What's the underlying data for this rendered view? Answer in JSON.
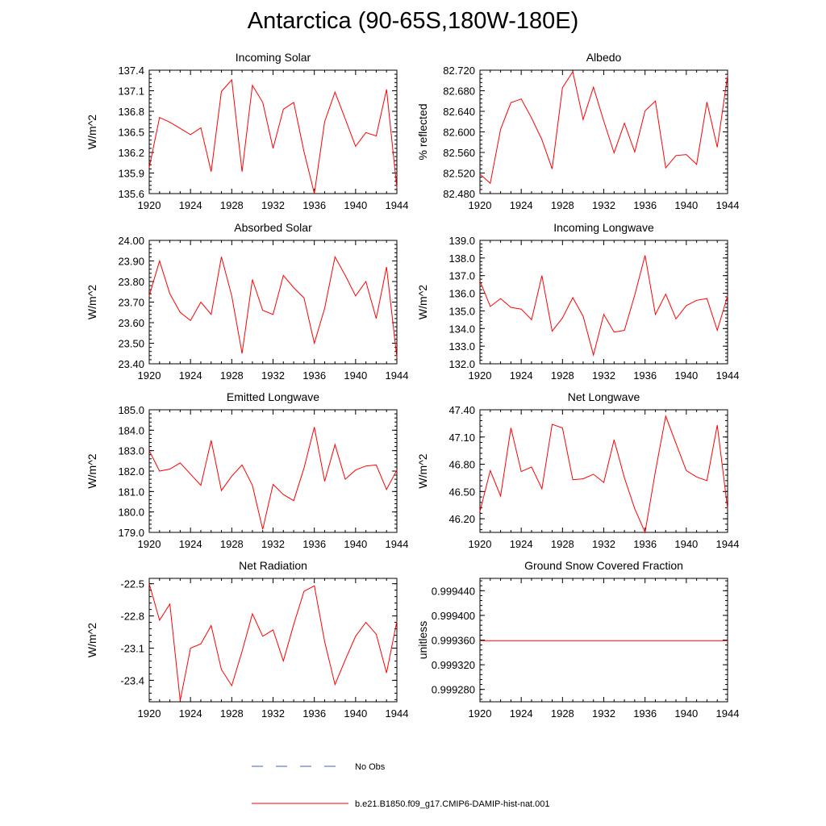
{
  "title": "Antarctica (90-65S,180W-180E)",
  "colors": {
    "model_line": "#ff0000",
    "obs_line": "#3f5fbf",
    "frame": "#000000"
  },
  "legend": {
    "obs_label": "No Obs",
    "model_label": "b.e21.B1850.f09_g17.CMIP6-DAMIP-hist-nat.001"
  },
  "chart_data": [
    {
      "type": "line",
      "title": "Incoming Solar",
      "xlabel": "",
      "ylabel": "W/m^2",
      "xlim": [
        1920,
        1944
      ],
      "ylim": [
        135.6,
        137.4
      ],
      "xticks": [
        1920,
        1924,
        1928,
        1932,
        1936,
        1940,
        1944
      ],
      "yticks": [
        135.6,
        135.9,
        136.2,
        136.5,
        136.8,
        137.1,
        137.4
      ],
      "ytick_labels": [
        "135.6",
        "135.9",
        "136.2",
        "136.5",
        "136.8",
        "137.1",
        "137.4"
      ],
      "x": [
        1920,
        1921,
        1922,
        1923,
        1924,
        1925,
        1926,
        1927,
        1928,
        1929,
        1930,
        1931,
        1932,
        1933,
        1934,
        1935,
        1936,
        1937,
        1938,
        1939,
        1940,
        1941,
        1942,
        1943,
        1944
      ],
      "series": [
        {
          "values": [
            135.98,
            136.71,
            136.64,
            136.55,
            136.46,
            136.56,
            135.92,
            137.09,
            137.26,
            135.92,
            137.18,
            136.93,
            136.26,
            136.83,
            136.93,
            136.21,
            135.6,
            136.65,
            137.08,
            136.69,
            136.29,
            136.49,
            136.44,
            137.12,
            135.68
          ]
        }
      ]
    },
    {
      "type": "line",
      "title": "Albedo",
      "xlabel": "",
      "ylabel": "% reflected",
      "xlim": [
        1920,
        1944
      ],
      "ylim": [
        82.48,
        82.72
      ],
      "xticks": [
        1920,
        1924,
        1928,
        1932,
        1936,
        1940,
        1944
      ],
      "yticks": [
        82.48,
        82.52,
        82.56,
        82.6,
        82.64,
        82.68,
        82.72
      ],
      "ytick_labels": [
        "82.480",
        "82.520",
        "82.560",
        "82.600",
        "82.640",
        "82.680",
        "82.720"
      ],
      "x": [
        1920,
        1921,
        1922,
        1923,
        1924,
        1925,
        1926,
        1927,
        1928,
        1929,
        1930,
        1931,
        1932,
        1933,
        1934,
        1935,
        1936,
        1937,
        1938,
        1939,
        1940,
        1941,
        1942,
        1943,
        1944
      ],
      "series": [
        {
          "values": [
            82.518,
            82.5,
            82.605,
            82.657,
            82.664,
            82.627,
            82.585,
            82.528,
            82.686,
            82.717,
            82.624,
            82.687,
            82.621,
            82.559,
            82.617,
            82.561,
            82.641,
            82.66,
            82.53,
            82.554,
            82.556,
            82.537,
            82.658,
            82.57,
            82.71
          ]
        }
      ]
    },
    {
      "type": "line",
      "title": "Absorbed Solar",
      "xlabel": "",
      "ylabel": "W/m^2",
      "xlim": [
        1920,
        1944
      ],
      "ylim": [
        23.4,
        24.0
      ],
      "xticks": [
        1920,
        1924,
        1928,
        1932,
        1936,
        1940,
        1944
      ],
      "yticks": [
        23.4,
        23.5,
        23.6,
        23.7,
        23.8,
        23.9,
        24.0
      ],
      "ytick_labels": [
        "23.40",
        "23.50",
        "23.60",
        "23.70",
        "23.80",
        "23.90",
        "24.00"
      ],
      "x": [
        1920,
        1921,
        1922,
        1923,
        1924,
        1925,
        1926,
        1927,
        1928,
        1929,
        1930,
        1931,
        1932,
        1933,
        1934,
        1935,
        1936,
        1937,
        1938,
        1939,
        1940,
        1941,
        1942,
        1943,
        1944
      ],
      "series": [
        {
          "values": [
            23.73,
            23.9,
            23.74,
            23.65,
            23.61,
            23.7,
            23.64,
            23.92,
            23.73,
            23.45,
            23.81,
            23.66,
            23.64,
            23.83,
            23.77,
            23.72,
            23.5,
            23.67,
            23.92,
            23.83,
            23.73,
            23.8,
            23.62,
            23.87,
            23.43
          ]
        }
      ]
    },
    {
      "type": "line",
      "title": "Incoming Longwave",
      "xlabel": "",
      "ylabel": "W/m^2",
      "xlim": [
        1920,
        1944
      ],
      "ylim": [
        132.0,
        139.0
      ],
      "xticks": [
        1920,
        1924,
        1928,
        1932,
        1936,
        1940,
        1944
      ],
      "yticks": [
        132,
        133,
        134,
        135,
        136,
        137,
        138,
        139
      ],
      "ytick_labels": [
        "132.0",
        "133.0",
        "134.0",
        "135.0",
        "136.0",
        "137.0",
        "138.0",
        "139.0"
      ],
      "x": [
        1920,
        1921,
        1922,
        1923,
        1924,
        1925,
        1926,
        1927,
        1928,
        1929,
        1930,
        1931,
        1932,
        1933,
        1934,
        1935,
        1936,
        1937,
        1938,
        1939,
        1940,
        1941,
        1942,
        1943,
        1944
      ],
      "series": [
        {
          "values": [
            136.7,
            135.25,
            135.7,
            135.2,
            135.1,
            134.5,
            137.0,
            133.85,
            134.6,
            135.75,
            134.7,
            132.5,
            134.8,
            133.8,
            133.9,
            135.9,
            138.15,
            134.8,
            135.95,
            134.55,
            135.3,
            135.6,
            135.7,
            133.9,
            135.85
          ]
        }
      ]
    },
    {
      "type": "line",
      "title": "Emitted Longwave",
      "xlabel": "",
      "ylabel": "W/m^2",
      "xlim": [
        1920,
        1944
      ],
      "ylim": [
        179.0,
        185.0
      ],
      "xticks": [
        1920,
        1924,
        1928,
        1932,
        1936,
        1940,
        1944
      ],
      "yticks": [
        179,
        180,
        181,
        182,
        183,
        184,
        185
      ],
      "ytick_labels": [
        "179.0",
        "180.0",
        "181.0",
        "182.0",
        "183.0",
        "184.0",
        "185.0"
      ],
      "x": [
        1920,
        1921,
        1922,
        1923,
        1924,
        1925,
        1926,
        1927,
        1928,
        1929,
        1930,
        1931,
        1932,
        1933,
        1934,
        1935,
        1936,
        1937,
        1938,
        1939,
        1940,
        1941,
        1942,
        1943,
        1944
      ],
      "series": [
        {
          "values": [
            183.0,
            182.0,
            182.1,
            182.4,
            181.85,
            181.3,
            183.5,
            181.05,
            181.75,
            182.3,
            181.3,
            179.15,
            181.35,
            180.85,
            180.55,
            182.15,
            184.15,
            181.5,
            183.3,
            181.6,
            182.05,
            182.25,
            182.3,
            181.1,
            182.05
          ]
        }
      ]
    },
    {
      "type": "line",
      "title": "Net Longwave",
      "xlabel": "",
      "ylabel": "W/m^2",
      "xlim": [
        1920,
        1944
      ],
      "ylim": [
        46.05,
        47.4
      ],
      "xticks": [
        1920,
        1924,
        1928,
        1932,
        1936,
        1940,
        1944
      ],
      "yticks": [
        46.2,
        46.5,
        46.8,
        47.1,
        47.4
      ],
      "ytick_labels": [
        "46.20",
        "46.50",
        "46.80",
        "47.10",
        "47.40"
      ],
      "x": [
        1920,
        1921,
        1922,
        1923,
        1924,
        1925,
        1926,
        1927,
        1928,
        1929,
        1930,
        1931,
        1932,
        1933,
        1934,
        1935,
        1936,
        1937,
        1938,
        1939,
        1940,
        1941,
        1942,
        1943,
        1944
      ],
      "series": [
        {
          "values": [
            46.28,
            46.73,
            46.45,
            47.2,
            46.72,
            46.77,
            46.53,
            47.24,
            47.2,
            46.63,
            46.64,
            46.69,
            46.6,
            47.07,
            46.65,
            46.31,
            46.05,
            46.72,
            47.33,
            47.03,
            46.73,
            46.66,
            46.62,
            47.23,
            46.31
          ]
        }
      ]
    },
    {
      "type": "line",
      "title": "Net Radiation",
      "xlabel": "",
      "ylabel": "W/m^2",
      "xlim": [
        1920,
        1944
      ],
      "ylim": [
        -23.6,
        -22.45
      ],
      "xticks": [
        1920,
        1924,
        1928,
        1932,
        1936,
        1940,
        1944
      ],
      "yticks": [
        -23.4,
        -23.1,
        -22.8,
        -22.5
      ],
      "ytick_labels": [
        "-23.4",
        "-23.1",
        "-22.8",
        "-22.5"
      ],
      "x": [
        1920,
        1921,
        1922,
        1923,
        1924,
        1925,
        1926,
        1927,
        1928,
        1929,
        1930,
        1931,
        1932,
        1933,
        1934,
        1935,
        1936,
        1937,
        1938,
        1939,
        1940,
        1941,
        1942,
        1943,
        1944
      ],
      "series": [
        {
          "values": [
            -22.5,
            -22.84,
            -22.69,
            -23.59,
            -23.1,
            -23.06,
            -22.89,
            -23.3,
            -23.45,
            -23.13,
            -22.78,
            -22.99,
            -22.93,
            -23.22,
            -22.88,
            -22.57,
            -22.52,
            -23.04,
            -23.44,
            -23.21,
            -22.99,
            -22.86,
            -22.97,
            -23.33,
            -22.85
          ]
        }
      ]
    },
    {
      "type": "line",
      "title": "Ground Snow Covered Fraction",
      "xlabel": "",
      "ylabel": "unitless",
      "xlim": [
        1920,
        1944
      ],
      "ylim": [
        0.99926,
        0.99946
      ],
      "xticks": [
        1920,
        1924,
        1928,
        1932,
        1936,
        1940,
        1944
      ],
      "yticks": [
        0.99928,
        0.99932,
        0.99936,
        0.9994,
        0.99944
      ],
      "ytick_labels": [
        "0.999280",
        "0.999320",
        "0.999360",
        "0.999400",
        "0.999440"
      ],
      "x": [
        1920,
        1921,
        1922,
        1923,
        1924,
        1925,
        1926,
        1927,
        1928,
        1929,
        1930,
        1931,
        1932,
        1933,
        1934,
        1935,
        1936,
        1937,
        1938,
        1939,
        1940,
        1941,
        1942,
        1943,
        1944
      ],
      "series": [
        {
          "values": [
            0.999359,
            0.999359,
            0.999359,
            0.999359,
            0.999359,
            0.999359,
            0.999359,
            0.999359,
            0.999359,
            0.999359,
            0.999359,
            0.999359,
            0.999359,
            0.999359,
            0.999359,
            0.999359,
            0.999359,
            0.999359,
            0.999359,
            0.999359,
            0.999359,
            0.999359,
            0.999359,
            0.999359,
            0.999359
          ]
        }
      ]
    }
  ]
}
